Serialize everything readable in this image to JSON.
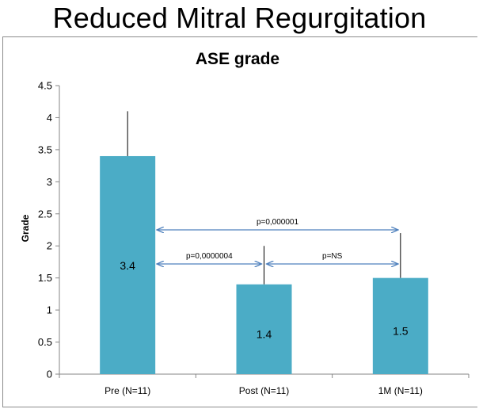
{
  "page": {
    "title": "Reduced Mitral Regurgitation"
  },
  "chart_data": {
    "type": "bar",
    "title": "ASE grade",
    "xlabel": "",
    "ylabel": "Grade",
    "ylim": [
      0,
      4.5
    ],
    "yticks": [
      "0",
      "0.5",
      "1",
      "1.5",
      "2",
      "2.5",
      "3",
      "3.5",
      "4",
      "4.5"
    ],
    "categories": [
      "Pre (N=11)",
      "Post (N=11)",
      "1M (N=11)"
    ],
    "values": [
      3.4,
      1.4,
      1.5
    ],
    "value_labels": [
      "3.4",
      "1.4",
      "1.5"
    ],
    "error_upper": [
      4.1,
      2.0,
      2.2
    ],
    "grid": false,
    "bar_color": "#4bacc6",
    "arrow_color": "#4f81bd",
    "comparisons": [
      {
        "from": 0,
        "to": 2,
        "label": "p=0,000001"
      },
      {
        "from": 0,
        "to": 1,
        "label": "p=0,0000004"
      },
      {
        "from": 1,
        "to": 2,
        "label": "p=NS"
      }
    ]
  }
}
